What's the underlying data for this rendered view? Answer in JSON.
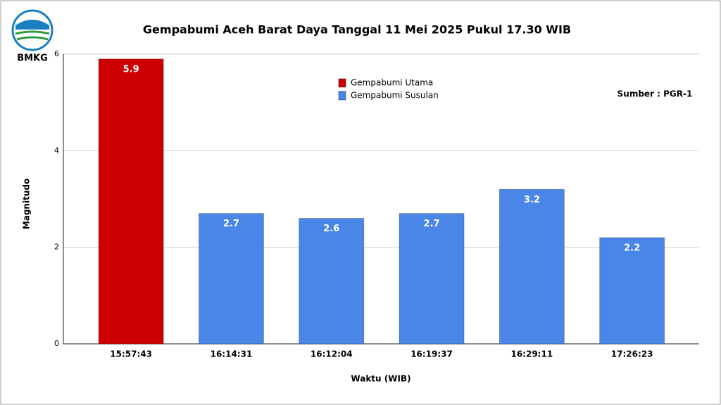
{
  "logo": {
    "text": "BMKG"
  },
  "chart_data": {
    "type": "bar",
    "title": "Gempabumi Aceh Barat Daya Tanggal 11 Mei 2025 Pukul 17.30 WIB",
    "annotation": "Sumber : PGR-1",
    "x_label": "Waktu (WIB)",
    "y_label": "Magnitudo",
    "categories": [
      "15:57:43",
      "16:14:31",
      "16:12:04",
      "16:19:37",
      "16:29:11",
      "17:26:23"
    ],
    "series": [
      {
        "name": "Gempabumi Utama",
        "color": "#cc0000",
        "values": [
          5.9,
          null,
          null,
          null,
          null,
          null
        ]
      },
      {
        "name": "Gempabumi Susulan",
        "color": "#4a86e8",
        "values": [
          null,
          2.7,
          2.6,
          2.7,
          3.2,
          2.2
        ]
      }
    ],
    "ylim": [
      0,
      6
    ],
    "yticks": [
      0,
      2,
      4,
      6
    ],
    "grid": true
  }
}
